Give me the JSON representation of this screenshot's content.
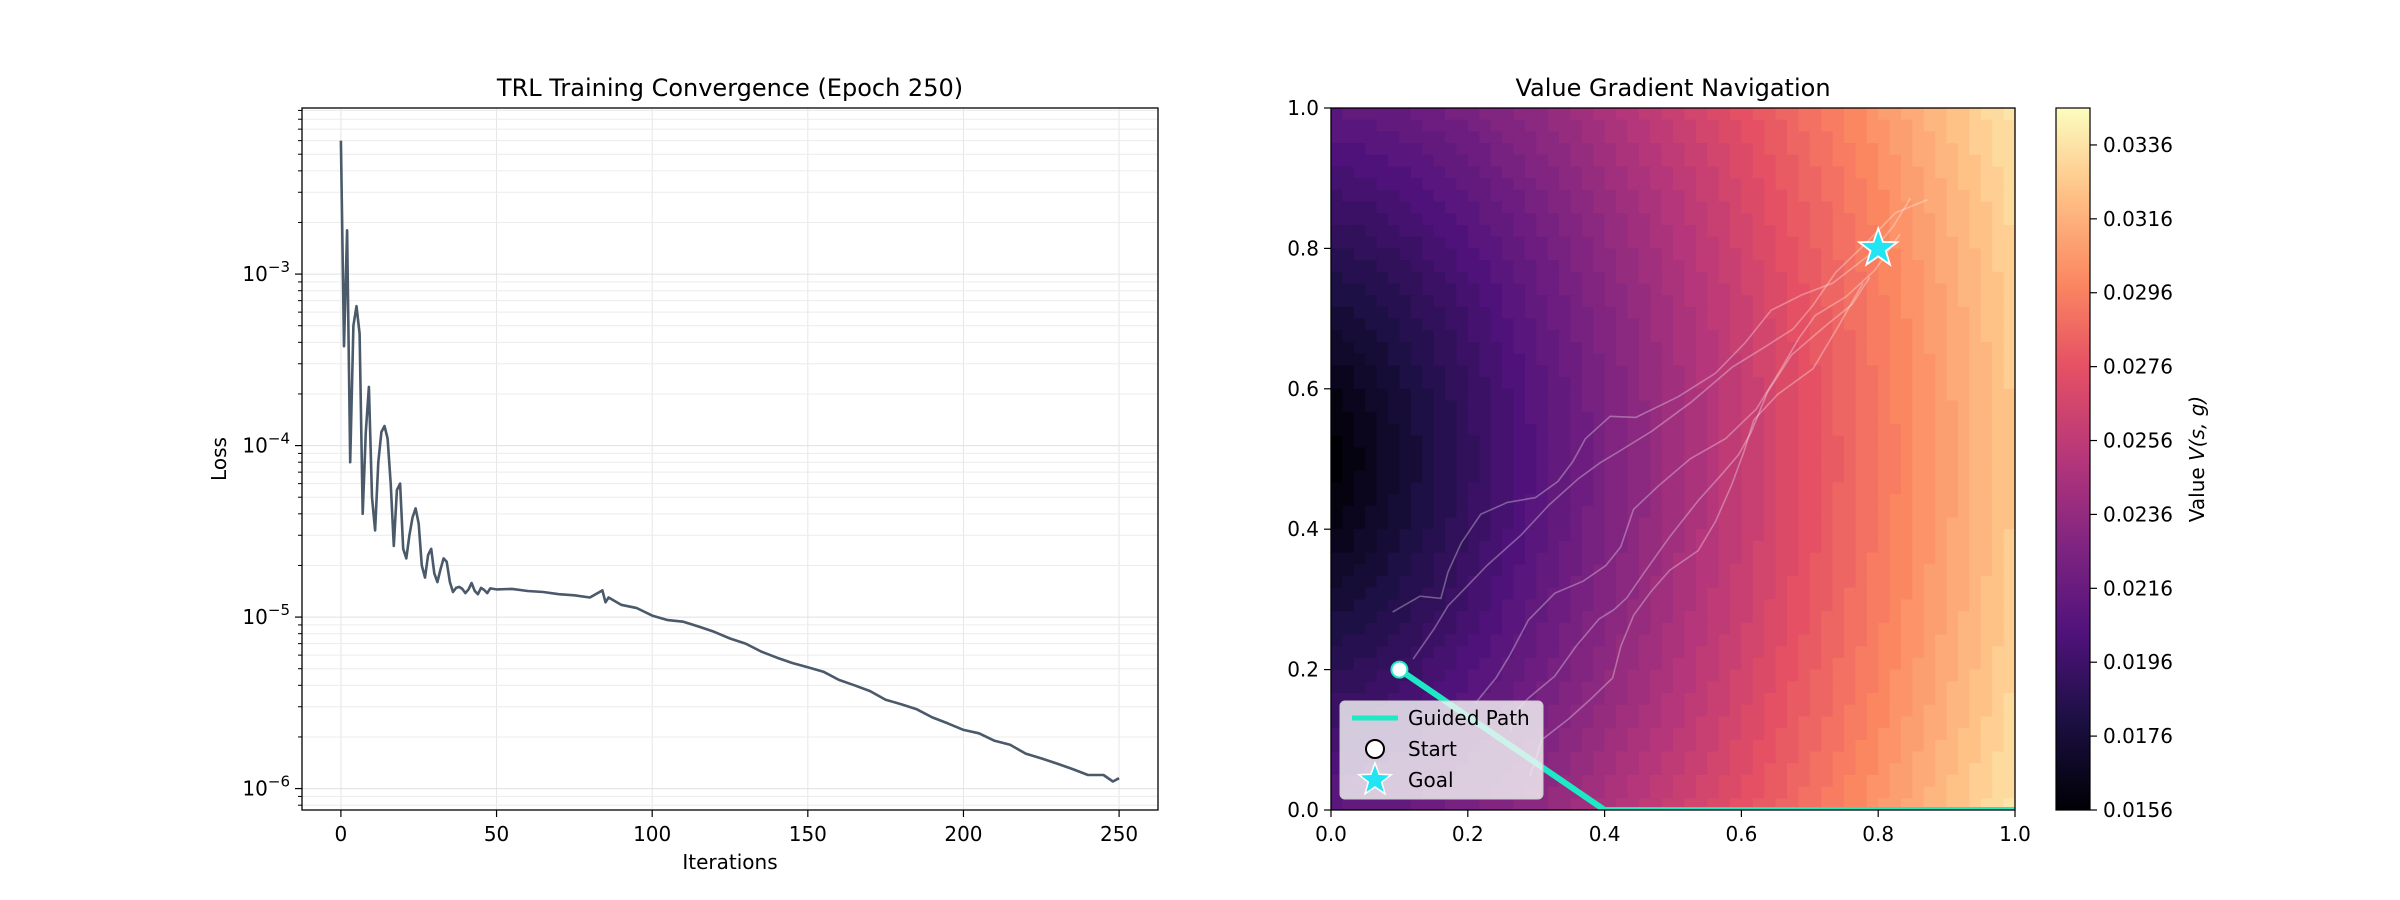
{
  "chart_data": [
    {
      "type": "line",
      "title": "TRL Training Convergence (Epoch 250)",
      "xlabel": "Iterations",
      "ylabel": "Loss",
      "yscale": "log",
      "xlim": [
        -12.5,
        262.5
      ],
      "ylim": [
        7.5e-07,
        0.0093
      ],
      "xticks": [
        0,
        50,
        100,
        150,
        200,
        250
      ],
      "yticks": [
        {
          "value": 1e-06,
          "label_base": "10",
          "label_exp": "−6"
        },
        {
          "value": 1e-05,
          "label_base": "10",
          "label_exp": "−5"
        },
        {
          "value": 0.0001,
          "label_base": "10",
          "label_exp": "−4"
        },
        {
          "value": 0.001,
          "label_base": "10",
          "label_exp": "−3"
        }
      ],
      "grid": true,
      "line_color": "#4a5a6a",
      "series": [
        {
          "x": [
            0,
            1,
            2,
            3,
            4,
            5,
            6,
            7,
            8,
            9,
            10,
            11,
            12,
            13,
            14,
            15,
            16,
            17,
            18,
            19,
            20,
            21,
            22,
            23,
            24,
            25,
            26,
            27,
            28,
            29,
            30,
            31,
            32,
            33,
            34,
            35,
            36,
            37,
            38,
            39,
            40,
            41,
            42,
            43,
            44,
            45,
            46,
            47,
            48,
            50,
            55,
            60,
            65,
            70,
            75,
            80,
            84,
            85,
            86,
            90,
            95,
            100,
            105,
            110,
            115,
            120,
            125,
            130,
            135,
            140,
            145,
            150,
            155,
            160,
            165,
            170,
            175,
            180,
            185,
            190,
            195,
            200,
            205,
            210,
            215,
            220,
            225,
            230,
            235,
            240,
            245,
            248,
            250
          ],
          "y": [
            0.006,
            0.00038,
            0.0018,
            8e-05,
            0.0005,
            0.00065,
            0.00045,
            4e-05,
            0.00012,
            0.00022,
            5e-05,
            3.2e-05,
            8e-05,
            0.00012,
            0.00013,
            0.00011,
            6e-05,
            2.6e-05,
            5.5e-05,
            6e-05,
            2.5e-05,
            2.2e-05,
            3e-05,
            3.8e-05,
            4.3e-05,
            3.5e-05,
            2e-05,
            1.7e-05,
            2.3e-05,
            2.5e-05,
            1.8e-05,
            1.6e-05,
            1.9e-05,
            2.2e-05,
            2.1e-05,
            1.6e-05,
            1.4e-05,
            1.48e-05,
            1.5e-05,
            1.46e-05,
            1.38e-05,
            1.45e-05,
            1.58e-05,
            1.42e-05,
            1.36e-05,
            1.48e-05,
            1.44e-05,
            1.38e-05,
            1.47e-05,
            1.45e-05,
            1.46e-05,
            1.42e-05,
            1.4e-05,
            1.36e-05,
            1.34e-05,
            1.3e-05,
            1.43e-05,
            1.22e-05,
            1.3e-05,
            1.18e-05,
            1.13e-05,
            1.02e-05,
            9.6e-06,
            9.4e-06,
            8.8e-06,
            8.2e-06,
            7.5e-06,
            7e-06,
            6.3e-06,
            5.8e-06,
            5.4e-06,
            5.1e-06,
            4.8e-06,
            4.3e-06,
            4e-06,
            3.7e-06,
            3.3e-06,
            3.1e-06,
            2.9e-06,
            2.6e-06,
            2.4e-06,
            2.2e-06,
            2.1e-06,
            1.9e-06,
            1.8e-06,
            1.6e-06,
            1.5e-06,
            1.4e-06,
            1.3e-06,
            1.2e-06,
            1.2e-06,
            1.1e-06,
            1.15e-06
          ]
        }
      ]
    },
    {
      "type": "heatmap",
      "title": "Value Gradient Navigation",
      "xlim": [
        0.0,
        1.0
      ],
      "ylim": [
        0.0,
        1.0
      ],
      "xticks": [
        "0.0",
        "0.2",
        "0.4",
        "0.6",
        "0.8",
        "1.0"
      ],
      "yticks": [
        "0.0",
        "0.2",
        "0.4",
        "0.6",
        "0.8",
        "1.0"
      ],
      "grid": false,
      "colormap": "magma",
      "value_field": {
        "description": "Value increases with distance from the left edge near (0,0.5)",
        "min": 0.0156,
        "max": 0.0346
      },
      "colorbar": {
        "label": "Value V(s,g)",
        "label_plain": "Value ",
        "label_math": "V(s, g)",
        "ticks": [
          "0.0156",
          "0.0176",
          "0.0196",
          "0.0216",
          "0.0236",
          "0.0256",
          "0.0276",
          "0.0296",
          "0.0316",
          "0.0336"
        ]
      },
      "guided_path": {
        "name": "Guided Path",
        "color": "#1de9c5",
        "x": [
          0.1,
          0.4,
          1.0
        ],
        "y": [
          0.2,
          0.0,
          0.0
        ]
      },
      "start": {
        "name": "Start",
        "x": 0.1,
        "y": 0.2
      },
      "goal": {
        "name": "Goal",
        "x": 0.8,
        "y": 0.8,
        "color": "#22e4f2"
      },
      "trajectories": [
        {
          "x": [
            0.09,
            0.12,
            0.15,
            0.17,
            0.2,
            0.23,
            0.26,
            0.29,
            0.32,
            0.35,
            0.38,
            0.42,
            0.45,
            0.5,
            0.55,
            0.6,
            0.65,
            0.7,
            0.74,
            0.78,
            0.81,
            0.84
          ],
          "y": [
            0.27,
            0.3,
            0.31,
            0.35,
            0.38,
            0.41,
            0.43,
            0.45,
            0.48,
            0.5,
            0.52,
            0.55,
            0.56,
            0.6,
            0.63,
            0.66,
            0.7,
            0.73,
            0.76,
            0.8,
            0.83,
            0.86
          ]
        },
        {
          "x": [
            0.11,
            0.14,
            0.17,
            0.2,
            0.24,
            0.28,
            0.31,
            0.35,
            0.39,
            0.43,
            0.48,
            0.53,
            0.58,
            0.62,
            0.67,
            0.71,
            0.75,
            0.79,
            0.82,
            0.86
          ],
          "y": [
            0.22,
            0.25,
            0.28,
            0.31,
            0.36,
            0.4,
            0.43,
            0.46,
            0.49,
            0.52,
            0.55,
            0.58,
            0.62,
            0.65,
            0.69,
            0.73,
            0.77,
            0.8,
            0.84,
            0.87
          ]
        },
        {
          "x": [
            0.2,
            0.24,
            0.27,
            0.3,
            0.33,
            0.36,
            0.39,
            0.42,
            0.45,
            0.49,
            0.53,
            0.57,
            0.61,
            0.65,
            0.69,
            0.72,
            0.76,
            0.79,
            0.82
          ],
          "y": [
            0.16,
            0.2,
            0.22,
            0.26,
            0.3,
            0.33,
            0.36,
            0.38,
            0.42,
            0.45,
            0.5,
            0.54,
            0.58,
            0.62,
            0.66,
            0.7,
            0.74,
            0.78,
            0.82
          ]
        },
        {
          "x": [
            0.26,
            0.28,
            0.3,
            0.33,
            0.35,
            0.38,
            0.41,
            0.44,
            0.47,
            0.5,
            0.53,
            0.56,
            0.59,
            0.62,
            0.65,
            0.68,
            0.72,
            0.75,
            0.78
          ],
          "y": [
            0.1,
            0.14,
            0.17,
            0.2,
            0.23,
            0.26,
            0.28,
            0.31,
            0.35,
            0.39,
            0.43,
            0.47,
            0.51,
            0.55,
            0.6,
            0.64,
            0.68,
            0.72,
            0.77
          ]
        },
        {
          "x": [
            0.3,
            0.32,
            0.35,
            0.37,
            0.4,
            0.42,
            0.45,
            0.48,
            0.5,
            0.53,
            0.55,
            0.58,
            0.61,
            0.63,
            0.66,
            0.7,
            0.73,
            0.77
          ],
          "y": [
            0.05,
            0.09,
            0.12,
            0.16,
            0.2,
            0.24,
            0.27,
            0.3,
            0.34,
            0.38,
            0.42,
            0.46,
            0.5,
            0.55,
            0.6,
            0.64,
            0.69,
            0.74
          ]
        }
      ],
      "legend": {
        "location": "lower-left",
        "entries": [
          "Guided Path",
          "Start",
          "Goal"
        ]
      }
    }
  ]
}
